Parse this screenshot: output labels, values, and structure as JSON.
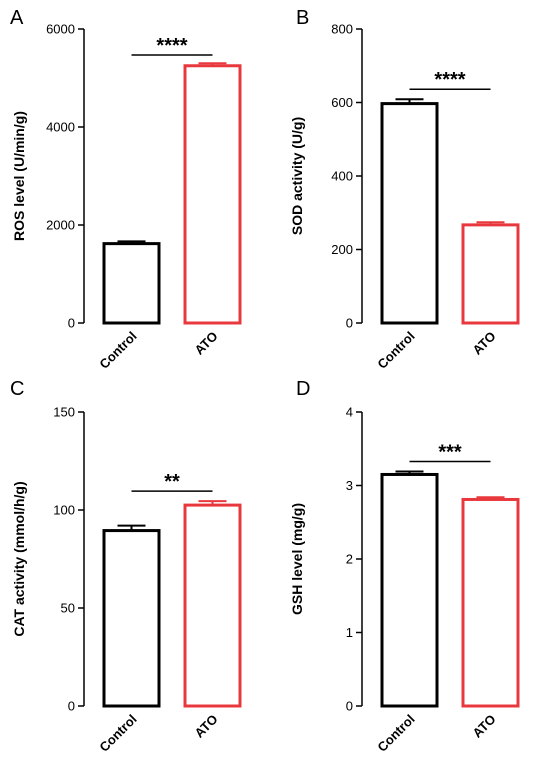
{
  "chart_data": [
    {
      "type": "bar",
      "panel": "A",
      "categories": [
        "Control",
        "ATO"
      ],
      "values": [
        1620,
        5250
      ],
      "errors": [
        45,
        50
      ],
      "ylabel": "ROS level (U/min/g)",
      "ylim": [
        0,
        6000
      ],
      "yticks": [
        0,
        2000,
        4000,
        6000
      ],
      "significance": "****",
      "colors": [
        "#000000",
        "#e8383d"
      ]
    },
    {
      "type": "bar",
      "panel": "B",
      "categories": [
        "Control",
        "ATO"
      ],
      "values": [
        597,
        267
      ],
      "errors": [
        12,
        7
      ],
      "ylabel": "SOD activity (U/g)",
      "ylim": [
        0,
        800
      ],
      "yticks": [
        0,
        200,
        400,
        600,
        800
      ],
      "significance": "****",
      "colors": [
        "#000000",
        "#e8383d"
      ]
    },
    {
      "type": "bar",
      "panel": "C",
      "categories": [
        "Control",
        "ATO"
      ],
      "values": [
        89.5,
        102.5
      ],
      "errors": [
        2.5,
        2.0
      ],
      "ylabel": "CAT activity (mmol/h/g)",
      "ylim": [
        0,
        150
      ],
      "yticks": [
        0,
        50,
        100,
        150
      ],
      "significance": "**",
      "colors": [
        "#000000",
        "#e8383d"
      ]
    },
    {
      "type": "bar",
      "panel": "D",
      "categories": [
        "Control",
        "ATO"
      ],
      "values": [
        3.15,
        2.81
      ],
      "errors": [
        0.04,
        0.03
      ],
      "ylabel": "GSH level (mg/g)",
      "ylim": [
        0,
        4
      ],
      "yticks": [
        0,
        1,
        2,
        3,
        4
      ],
      "significance": "***",
      "colors": [
        "#000000",
        "#e8383d"
      ]
    }
  ]
}
